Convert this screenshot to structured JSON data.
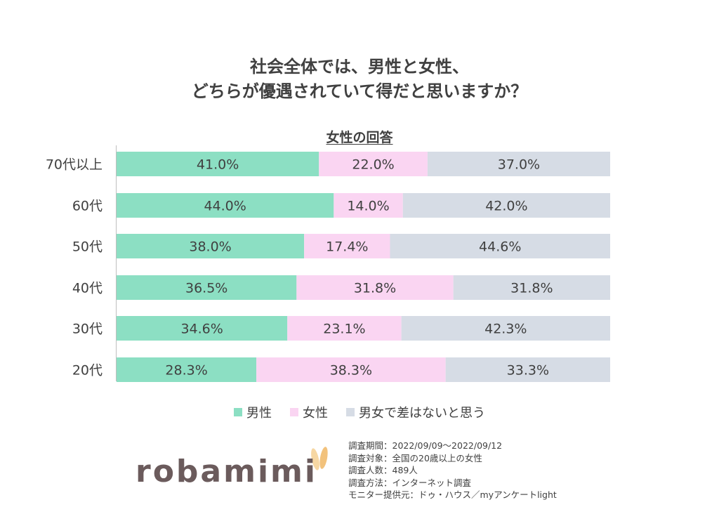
{
  "title_lines": [
    "社会全体では、男性と女性、",
    "どちらが優遇されていて得だと思いますか？"
  ],
  "subtitle": "女性の回答",
  "colors": {
    "male": "#8cdfc3",
    "female": "#fad5f2",
    "equal": "#d6dce5"
  },
  "chart_data": {
    "type": "bar",
    "orientation": "horizontal",
    "stacked": "percent",
    "categories": [
      "70代以上",
      "60代",
      "50代",
      "40代",
      "30代",
      "20代"
    ],
    "series": [
      {
        "name": "男性",
        "values": [
          41.0,
          44.0,
          38.0,
          36.5,
          34.6,
          28.3
        ]
      },
      {
        "name": "女性",
        "values": [
          22.0,
          14.0,
          17.4,
          31.8,
          23.1,
          38.3
        ]
      },
      {
        "name": "男女で差はないと思う",
        "values": [
          37.0,
          42.0,
          44.6,
          31.8,
          42.3,
          33.3
        ]
      }
    ],
    "data_labels": [
      [
        "41.0%",
        "22.0%",
        "37.0%"
      ],
      [
        "44.0%",
        "14.0%",
        "42.0%"
      ],
      [
        "38.0%",
        "17.4%",
        "44.6%"
      ],
      [
        "36.5%",
        "31.8%",
        "31.8%"
      ],
      [
        "34.6%",
        "23.1%",
        "42.3%"
      ],
      [
        "28.3%",
        "38.3%",
        "33.3%"
      ]
    ],
    "title": "女性の回答",
    "xlim": [
      0,
      100
    ],
    "grid": false,
    "legend": "bottom"
  },
  "legend": [
    {
      "label": "男性"
    },
    {
      "label": "女性"
    },
    {
      "label": "男女で差はないと思う"
    }
  ],
  "logo": "robamimi",
  "notes": [
    "調査期間：2022/09/09～2022/09/12",
    "調査対象：全国の20歳以上の女性",
    "調査人数：489人",
    "調査方法：インターネット調査",
    "モニター提供元：ドゥ・ハウス／myアンケートlight"
  ]
}
